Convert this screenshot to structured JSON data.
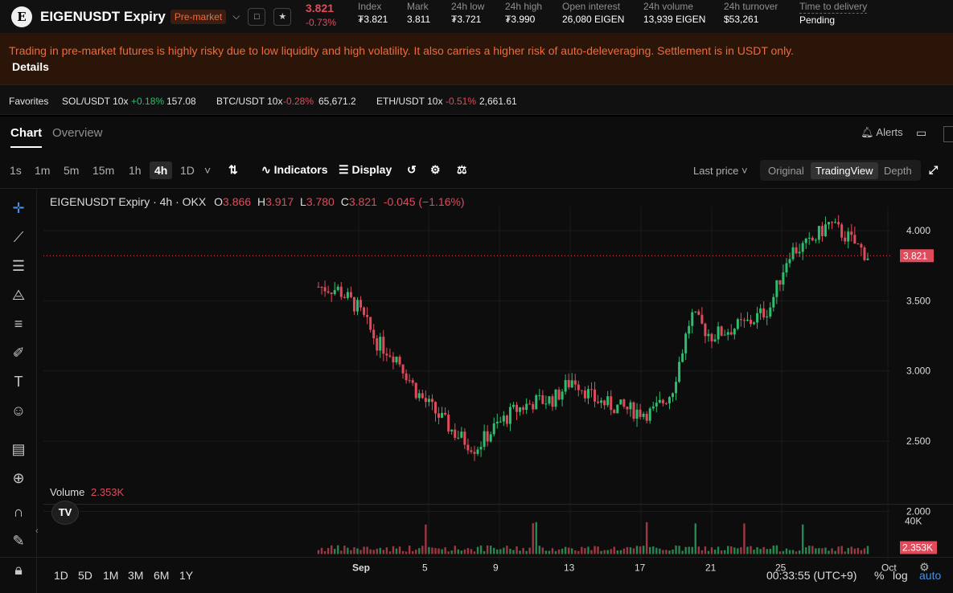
{
  "header": {
    "logo_letter": "E",
    "symbol": "EIGENUSDT Expiry",
    "badge": "Pre-market",
    "last_price": "3.821",
    "change_pct": "-0.73%",
    "stats": [
      {
        "label": "Index",
        "value": "₮3.821"
      },
      {
        "label": "Mark",
        "value": "3.811"
      },
      {
        "label": "24h low",
        "value": "₮3.721"
      },
      {
        "label": "24h high",
        "value": "₮3.990"
      },
      {
        "label": "Open interest",
        "value": "26,080 EIGEN"
      },
      {
        "label": "24h volume",
        "value": "13,939 EIGEN"
      },
      {
        "label": "24h turnover",
        "value": "$53,261"
      },
      {
        "label": "Time to delivery",
        "value": "Pending"
      }
    ]
  },
  "warning": {
    "text": "Trading in pre-market futures is highly risky due to low liquidity and high volatility. It also carries a higher risk of auto-deleveraging. Settlement is in USDT only.",
    "details": "Details"
  },
  "favorites": {
    "label": "Favorites",
    "items": [
      {
        "name": "SOL/USDT 10x",
        "change": "+0.18%",
        "price": "157.08"
      },
      {
        "name": "BTC/USDT 10x",
        "change": "-0.28%",
        "price": "65,671.2"
      },
      {
        "name": "ETH/USDT 10x",
        "change": "-0.51%",
        "price": "2,661.61"
      }
    ]
  },
  "tabs": {
    "chart": "Chart",
    "overview": "Overview",
    "alerts": "Alerts"
  },
  "toolbar": {
    "timeframes": [
      "1s",
      "1m",
      "5m",
      "15m",
      "1h",
      "4h",
      "1D"
    ],
    "selected": "4h",
    "indicators": "Indicators",
    "display": "Display",
    "price_type": "Last price",
    "modes": [
      "Original",
      "TradingView",
      "Depth"
    ],
    "active_mode": "TradingView"
  },
  "legend": {
    "title": "EIGENUSDT Expiry · 4h · OKX",
    "o_label": "O",
    "o": "3.866",
    "h_label": "H",
    "h": "3.917",
    "l_label": "L",
    "l": "3.780",
    "c_label": "C",
    "c": "3.821",
    "chg": "-0.045 (−1.16%)",
    "volume_label": "Volume",
    "volume_value": "2.353K"
  },
  "bottom": {
    "ranges": [
      "1D",
      "5D",
      "1M",
      "3M",
      "6M",
      "1Y"
    ],
    "clock": "00:33:55 (UTC+9)",
    "pct": "%",
    "log": "log",
    "auto": "auto"
  },
  "colors": {
    "up": "#2fbd6e",
    "down": "#e04b5c",
    "accent": "#f06a3a"
  },
  "chart_data": {
    "type": "candlestick",
    "y_axis_ticks": [
      "4.000",
      "3.500",
      "3.000",
      "2.500",
      "2.000"
    ],
    "ylim": [
      2.0,
      4.1
    ],
    "x_axis_ticks": [
      "Sep",
      "5",
      "9",
      "13",
      "17",
      "21",
      "25",
      "Oct"
    ],
    "current_price_label": "3.821",
    "volume_axis_tick": "40K",
    "volume_current_label": "2.353K",
    "series_trend": [
      {
        "x": "Sep 1",
        "y": 3.6
      },
      {
        "x": "Sep 2",
        "y": 3.58
      },
      {
        "x": "Sep 3",
        "y": 3.45
      },
      {
        "x": "Sep 4",
        "y": 3.2
      },
      {
        "x": "Sep 5",
        "y": 3.1
      },
      {
        "x": "Sep 6",
        "y": 2.85
      },
      {
        "x": "Sep 7",
        "y": 2.7
      },
      {
        "x": "Sep 8",
        "y": 2.55
      },
      {
        "x": "Sep 9",
        "y": 2.45
      },
      {
        "x": "Sep 10",
        "y": 2.6
      },
      {
        "x": "Sep 11",
        "y": 2.72
      },
      {
        "x": "Sep 12",
        "y": 2.78
      },
      {
        "x": "Sep 13",
        "y": 2.8
      },
      {
        "x": "Sep 14",
        "y": 2.95
      },
      {
        "x": "Sep 15",
        "y": 2.8
      },
      {
        "x": "Sep 16",
        "y": 2.75
      },
      {
        "x": "Sep 17",
        "y": 2.72
      },
      {
        "x": "Sep 18",
        "y": 2.7
      },
      {
        "x": "Sep 19",
        "y": 2.85
      },
      {
        "x": "Sep 20",
        "y": 3.4
      },
      {
        "x": "Sep 21",
        "y": 3.25
      },
      {
        "x": "Sep 22",
        "y": 3.3
      },
      {
        "x": "Sep 23",
        "y": 3.35
      },
      {
        "x": "Sep 24",
        "y": 3.45
      },
      {
        "x": "Sep 25",
        "y": 3.85
      },
      {
        "x": "Sep 26",
        "y": 3.9
      },
      {
        "x": "Sep 27",
        "y": 4.05
      },
      {
        "x": "Sep 28",
        "y": 3.95
      },
      {
        "x": "Sep 29",
        "y": 3.82
      }
    ]
  }
}
